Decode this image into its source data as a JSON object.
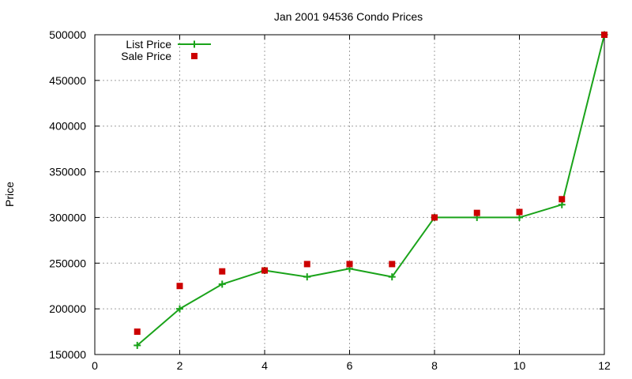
{
  "chart_data": {
    "type": "line",
    "title": "Jan 2001 94536 Condo Prices",
    "xlabel": "",
    "ylabel": "Price",
    "xlim": [
      0,
      12
    ],
    "ylim": [
      150000,
      500000
    ],
    "xticks": [
      0,
      2,
      4,
      6,
      8,
      10,
      12
    ],
    "yticks": [
      150000,
      200000,
      250000,
      300000,
      350000,
      400000,
      450000,
      500000
    ],
    "grid": true,
    "legend_position": "top-left",
    "series": [
      {
        "name": "List Price",
        "style": "linespoints",
        "marker": "plus",
        "color": "#1aa31a",
        "x": [
          1,
          2,
          3,
          4,
          5,
          6,
          7,
          8,
          9,
          10,
          11,
          12
        ],
        "y": [
          160000,
          200000,
          227000,
          242000,
          235000,
          244000,
          235000,
          300000,
          300000,
          300000,
          314000,
          500000
        ]
      },
      {
        "name": "Sale Price",
        "style": "points",
        "marker": "square",
        "color": "#cc0000",
        "x": [
          1,
          2,
          3,
          4,
          5,
          6,
          7,
          8,
          9,
          10,
          11,
          12
        ],
        "y": [
          175000,
          225000,
          241000,
          242000,
          249000,
          249000,
          249000,
          300000,
          305000,
          306000,
          320000,
          500000
        ]
      }
    ]
  }
}
